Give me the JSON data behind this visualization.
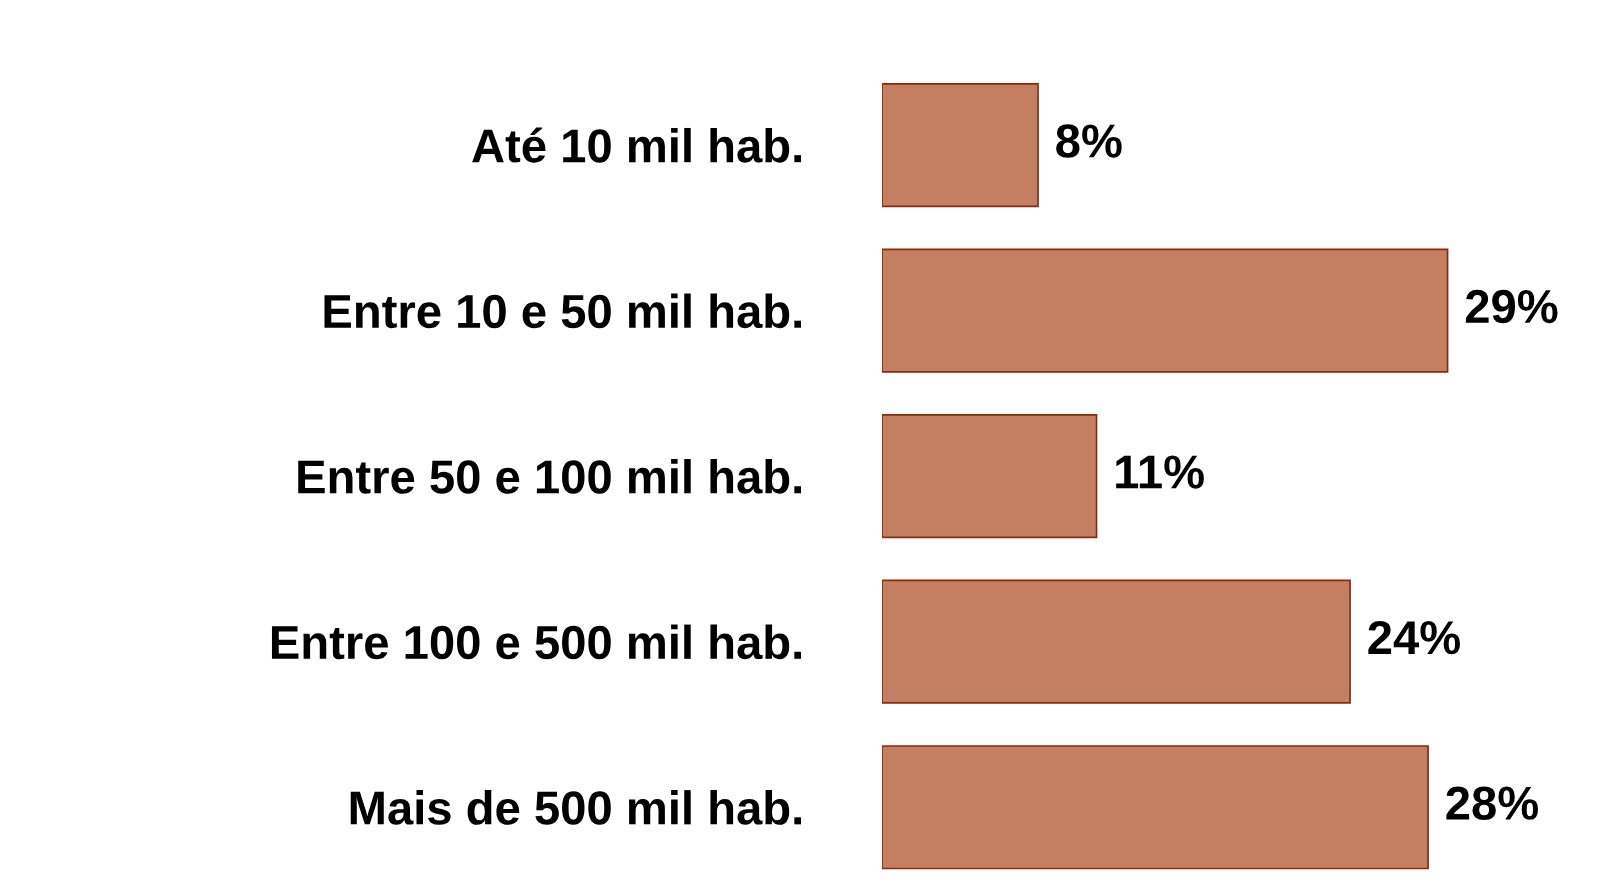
{
  "chart_data": {
    "type": "bar",
    "orientation": "horizontal",
    "categories": [
      "Até 10 mil hab.",
      "Entre 10 e 50 mil hab.",
      "Entre 50 e 100 mil hab.",
      "Entre 100 e 500 mil hab.",
      "Mais de 500 mil hab."
    ],
    "values": [
      8,
      29,
      11,
      24,
      28
    ],
    "value_labels": [
      "8%",
      "29%",
      "11%",
      "24%",
      "28%"
    ],
    "color": "#c47e62",
    "tick_labels": "y",
    "grid": false,
    "legend": false
  }
}
